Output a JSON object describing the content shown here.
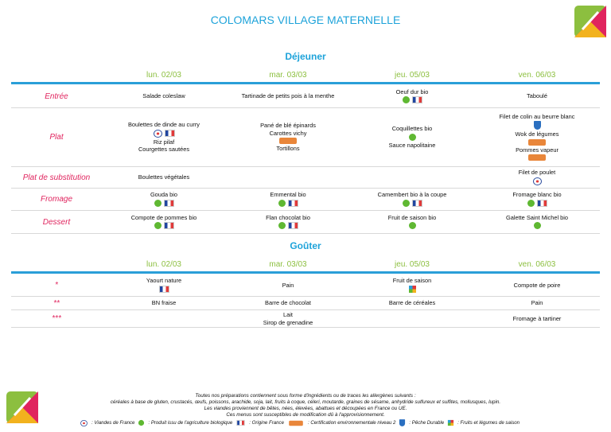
{
  "header": {
    "title": "COLOMARS VILLAGE MATERNELLE"
  },
  "lunch": {
    "heading": "Déjeuner",
    "days": [
      "lun. 02/03",
      "mar. 03/03",
      "jeu. 05/03",
      "ven. 06/03"
    ],
    "rows": [
      {
        "label": "Entrée",
        "cells": [
          [
            "Salade coleslaw"
          ],
          [
            "Tartinade de petits pois à la menthe"
          ],
          [
            "Oeuf dur bio"
          ],
          [
            "Taboulé"
          ]
        ]
      },
      {
        "label": "Plat",
        "cells": [
          [
            "Boulettes de dinde au curry",
            "Riz pilaf",
            "Courgettes sautées"
          ],
          [
            "Pané de blé épinards",
            "Carottes vichy",
            "Tortillons"
          ],
          [
            "Coquillettes bio",
            "Sauce napolitaine"
          ],
          [
            "Filet de colin au beurre blanc",
            "Wok de légumes",
            "Pommes vapeur"
          ]
        ]
      },
      {
        "label": "Plat de substitution",
        "cells": [
          [
            "Boulettes végétales"
          ],
          [],
          [],
          [
            "Filet de poulet"
          ]
        ]
      },
      {
        "label": "Fromage",
        "cells": [
          [
            "Gouda bio"
          ],
          [
            "Emmental bio"
          ],
          [
            "Camembert bio à la coupe"
          ],
          [
            "Fromage blanc bio"
          ]
        ]
      },
      {
        "label": "Dessert",
        "cells": [
          [
            "Compote de pommes bio"
          ],
          [
            "Flan chocolat bio"
          ],
          [
            "Fruit de saison bio"
          ],
          [
            "Galette Saint Michel bio"
          ]
        ]
      }
    ]
  },
  "snack": {
    "heading": "Goûter",
    "days": [
      "lun. 02/03",
      "mar. 03/03",
      "jeu. 05/03",
      "ven. 06/03"
    ],
    "rows": [
      {
        "label": "*",
        "cells": [
          [
            "Yaourt nature"
          ],
          [
            "Pain"
          ],
          [
            "Fruit de saison"
          ],
          [
            "Compote de poire"
          ]
        ]
      },
      {
        "label": "**",
        "cells": [
          [
            "BN fraise"
          ],
          [
            "Barre de chocolat"
          ],
          [
            "Barre de céréales"
          ],
          [
            "Pain"
          ]
        ]
      },
      {
        "label": "***",
        "cells": [
          [],
          [
            "Lait",
            "Sirop de grenadine"
          ],
          [],
          [
            "Fromage à tartiner"
          ]
        ]
      }
    ]
  },
  "footer": {
    "lines": [
      "Toutes nos préparations contiennent sous forme d'ingrédients ou de traces les allergènes suivants :",
      "céréales à base de gluten, crustacés, œufs, poissons, arachide, soja, lait, fruits à coque, céleri, moutarde, graines de sésame, anhydride sulfureux et sulfites, mollusques, lupin.",
      "Les viandes proviennent de bêtes, nées, élevées, abattues et découpées en France ou UE.",
      "Ces menus sont susceptibles de modification dû à l'approvisionnement."
    ],
    "legend": [
      ": Viandes de France",
      ": Produit issu de l'agriculture biologique",
      ": Origine France",
      ": Certification environnementale niveau 2",
      ": Pêche Durable",
      ": Fruits et légumes de saison"
    ]
  }
}
